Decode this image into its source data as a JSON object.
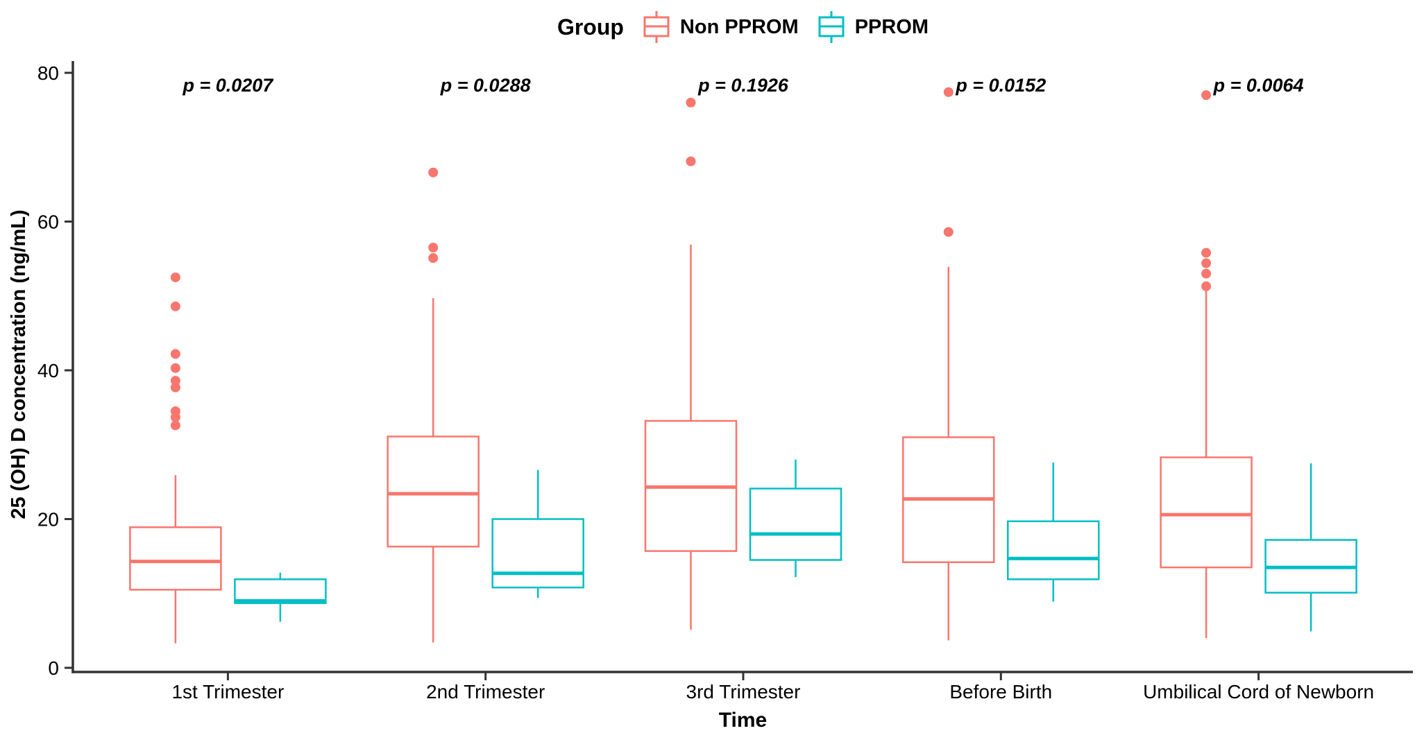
{
  "figure": {
    "background": "#ffffff",
    "axis_color": "#333333",
    "text_color": "#000000"
  },
  "chart_data": {
    "type": "boxplot",
    "title": "",
    "legend_title": "Group",
    "legend_position": "top-center",
    "grid": false,
    "xlabel": "Time",
    "ylabel": "25 (OH) D concentration (ng/mL)",
    "ylim": [
      0,
      80
    ],
    "y_ticks": [
      0,
      20,
      40,
      60,
      80
    ],
    "categories": [
      "1st Trimester",
      "2nd Trimester",
      "3rd Trimester",
      "Before Birth",
      "Umbilical Cord of Newborn"
    ],
    "p_values": [
      "p = 0.0207",
      "p = 0.0288",
      "p = 0.1926",
      "p = 0.0152",
      "p = 0.0064"
    ],
    "series": [
      {
        "name": "Non PPROM",
        "color": "#F8766D",
        "boxes": [
          {
            "whisker_low": 3.3,
            "q1": 10.5,
            "median": 14.3,
            "q3": 18.9,
            "whisker_high": 25.9,
            "outliers": [
              52.5,
              48.6,
              42.2,
              40.3,
              38.6,
              37.7,
              34.5,
              33.7,
              32.6
            ]
          },
          {
            "whisker_low": 3.4,
            "q1": 16.3,
            "median": 23.4,
            "q3": 31.1,
            "whisker_high": 49.7,
            "outliers": [
              66.6,
              56.5,
              55.1
            ]
          },
          {
            "whisker_low": 5.1,
            "q1": 15.7,
            "median": 24.3,
            "q3": 33.2,
            "whisker_high": 56.9,
            "outliers": [
              76.0,
              68.1
            ]
          },
          {
            "whisker_low": 3.7,
            "q1": 14.2,
            "median": 22.7,
            "q3": 31.0,
            "whisker_high": 53.9,
            "outliers": [
              77.4,
              58.6
            ]
          },
          {
            "whisker_low": 4.0,
            "q1": 13.5,
            "median": 20.6,
            "q3": 28.3,
            "whisker_high": 50.9,
            "outliers": [
              77.0,
              55.8,
              54.4,
              53.0,
              51.3
            ]
          }
        ]
      },
      {
        "name": "PPROM",
        "color": "#00BFC4",
        "boxes": [
          {
            "whisker_low": 6.2,
            "q1": 8.7,
            "median": 9.0,
            "q3": 11.9,
            "whisker_high": 12.8,
            "outliers": []
          },
          {
            "whisker_low": 9.4,
            "q1": 10.8,
            "median": 12.7,
            "q3": 20.0,
            "whisker_high": 26.6,
            "outliers": []
          },
          {
            "whisker_low": 12.2,
            "q1": 14.5,
            "median": 18.0,
            "q3": 24.1,
            "whisker_high": 28.0,
            "outliers": []
          },
          {
            "whisker_low": 8.9,
            "q1": 11.9,
            "median": 14.7,
            "q3": 19.7,
            "whisker_high": 27.6,
            "outliers": []
          },
          {
            "whisker_low": 4.9,
            "q1": 10.1,
            "median": 13.5,
            "q3": 17.2,
            "whisker_high": 27.5,
            "outliers": []
          }
        ]
      }
    ]
  }
}
